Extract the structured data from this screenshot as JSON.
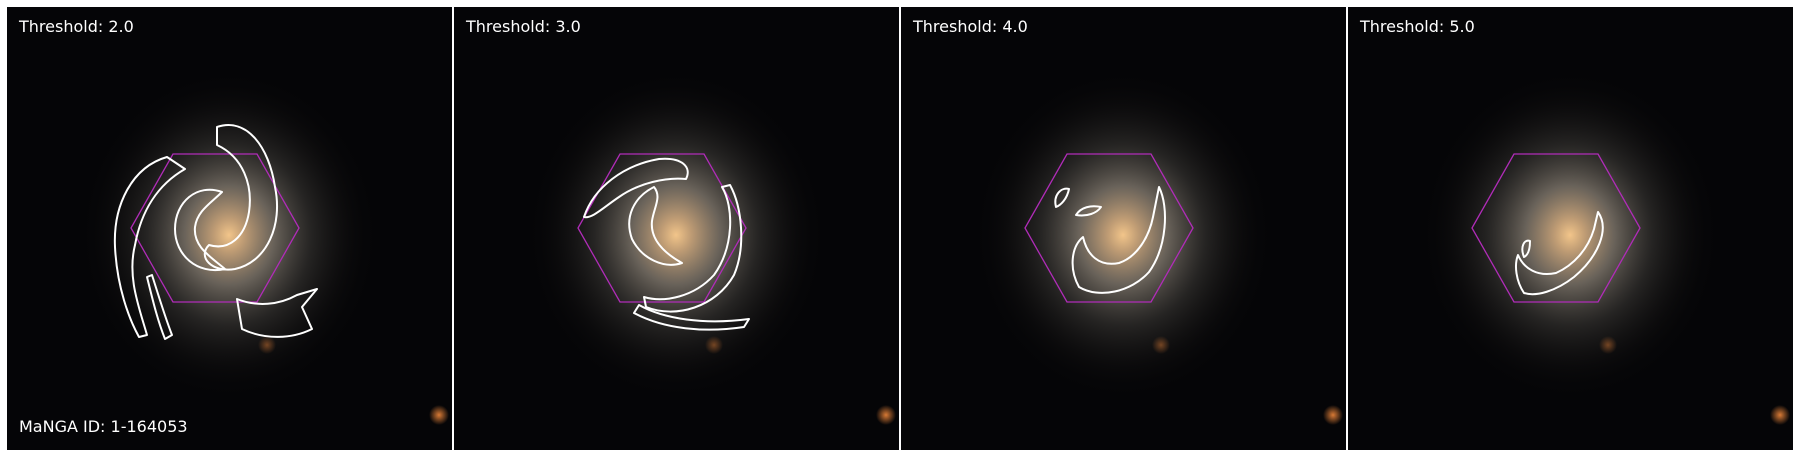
{
  "panels": [
    {
      "threshold_label": "Threshold: 2.0",
      "manga_id_label": "MaNGA ID: 1-164053"
    },
    {
      "threshold_label": "Threshold: 3.0"
    },
    {
      "threshold_label": "Threshold: 4.0"
    },
    {
      "threshold_label": "Threshold: 5.0"
    }
  ],
  "colors": {
    "background": "#050507",
    "galaxy_core": "#e6b77a",
    "galaxy_disk": "#8f8478",
    "contour": "#ffffff",
    "ifu_hexagon": "#b02cb8",
    "bright_star": "#c8642a"
  }
}
